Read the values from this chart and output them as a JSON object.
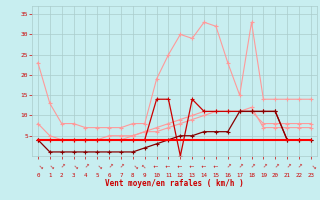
{
  "x": [
    0,
    1,
    2,
    3,
    4,
    5,
    6,
    7,
    8,
    9,
    10,
    11,
    12,
    13,
    14,
    15,
    16,
    17,
    18,
    19,
    20,
    21,
    22,
    23
  ],
  "series": [
    {
      "name": "line1_light_salmon_peak",
      "color": "#ff9999",
      "linewidth": 0.8,
      "marker": "+",
      "markersize": 3,
      "y": [
        23,
        13,
        8,
        8,
        7,
        7,
        7,
        7,
        8,
        8,
        19,
        25,
        30,
        29,
        33,
        32,
        23,
        15,
        33,
        14,
        14,
        14,
        14,
        14
      ]
    },
    {
      "name": "line2_salmon_mid",
      "color": "#ff9999",
      "linewidth": 0.8,
      "marker": "+",
      "markersize": 3,
      "y": [
        8,
        5,
        4,
        4,
        4,
        4,
        4,
        4,
        5,
        6,
        7,
        8,
        9,
        10,
        11,
        11,
        11,
        11,
        12,
        7,
        7,
        7,
        7,
        7
      ]
    },
    {
      "name": "line3_salmon_low",
      "color": "#ff9999",
      "linewidth": 0.8,
      "marker": "+",
      "markersize": 3,
      "y": [
        4,
        4,
        4,
        4,
        4,
        4,
        5,
        5,
        5,
        6,
        6,
        7,
        8,
        9,
        10,
        11,
        11,
        11,
        11,
        8,
        8,
        8,
        8,
        8
      ]
    },
    {
      "name": "line4_red_spike",
      "color": "#cc0000",
      "linewidth": 0.9,
      "marker": "+",
      "markersize": 3,
      "y": [
        4,
        4,
        4,
        4,
        4,
        4,
        4,
        4,
        4,
        4,
        14,
        14,
        0,
        14,
        11,
        11,
        11,
        11,
        11,
        11,
        11,
        4,
        4,
        4
      ]
    },
    {
      "name": "line5_dark_red",
      "color": "#880000",
      "linewidth": 0.9,
      "marker": "+",
      "markersize": 3,
      "y": [
        4,
        1,
        1,
        1,
        1,
        1,
        1,
        1,
        1,
        2,
        3,
        4,
        5,
        5,
        6,
        6,
        6,
        11,
        11,
        11,
        11,
        4,
        4,
        4
      ]
    },
    {
      "name": "line6_red_flat",
      "color": "#ff0000",
      "linewidth": 1.5,
      "marker": null,
      "markersize": 0,
      "y": [
        4,
        4,
        4,
        4,
        4,
        4,
        4,
        4,
        4,
        4,
        4,
        4,
        4,
        4,
        4,
        4,
        4,
        4,
        4,
        4,
        4,
        4,
        4,
        4
      ]
    }
  ],
  "xlim": [
    -0.5,
    23.5
  ],
  "ylim": [
    0,
    37
  ],
  "yticks": [
    5,
    10,
    15,
    20,
    25,
    30,
    35
  ],
  "ytick_labels": [
    "5",
    "10",
    "15",
    "20",
    "25",
    "30",
    "35"
  ],
  "xticks": [
    0,
    1,
    2,
    3,
    4,
    5,
    6,
    7,
    8,
    9,
    10,
    11,
    12,
    13,
    14,
    15,
    16,
    17,
    18,
    19,
    20,
    21,
    22,
    23
  ],
  "xlabel": "Vent moyen/en rafales ( km/h )",
  "background_color": "#c8eef0",
  "grid_color": "#aacccc",
  "tick_color": "#cc0000",
  "xlabel_color": "#cc0000"
}
